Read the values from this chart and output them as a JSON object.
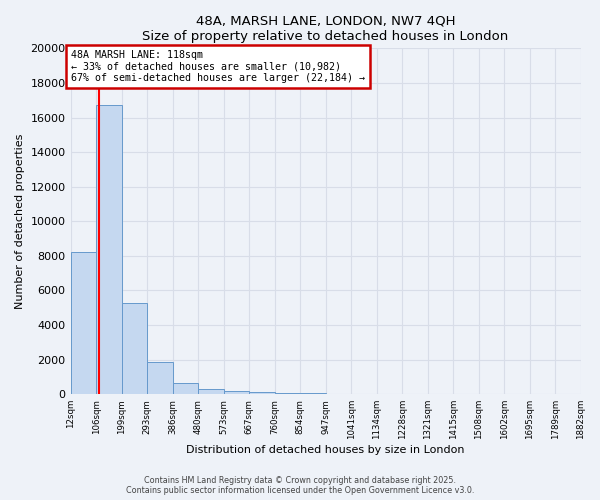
{
  "title1": "48A, MARSH LANE, LONDON, NW7 4QH",
  "title2": "Size of property relative to detached houses in London",
  "xlabel": "Distribution of detached houses by size in London",
  "ylabel": "Number of detached properties",
  "bar_values": [
    8200,
    16700,
    5300,
    1850,
    650,
    300,
    200,
    100,
    80,
    50,
    30,
    20,
    15,
    10,
    8,
    5,
    3,
    2,
    1,
    1
  ],
  "bin_edges": [
    12,
    106,
    199,
    293,
    386,
    480,
    573,
    667,
    760,
    854,
    947,
    1041,
    1134,
    1228,
    1321,
    1415,
    1508,
    1602,
    1695,
    1789,
    1882
  ],
  "bar_color": "#c5d8f0",
  "bar_edge_color": "#6699cc",
  "red_line_x": 118,
  "annotation_line1": "48A MARSH LANE: 118sqm",
  "annotation_line2": "← 33% of detached houses are smaller (10,982)",
  "annotation_line3": "67% of semi-detached houses are larger (22,184) →",
  "annotation_box_color": "#ffffff",
  "annotation_box_edge_color": "#cc0000",
  "ylim": [
    0,
    20000
  ],
  "yticks": [
    0,
    2000,
    4000,
    6000,
    8000,
    10000,
    12000,
    14000,
    16000,
    18000,
    20000
  ],
  "footer1": "Contains HM Land Registry data © Crown copyright and database right 2025.",
  "footer2": "Contains public sector information licensed under the Open Government Licence v3.0.",
  "bg_color": "#eef2f8",
  "grid_color": "#d8dde8"
}
